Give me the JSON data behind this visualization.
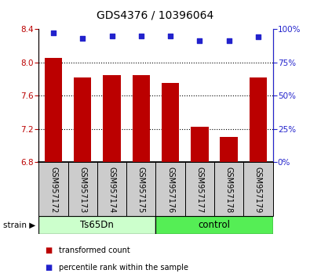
{
  "title": "GDS4376 / 10396064",
  "samples": [
    "GSM957172",
    "GSM957173",
    "GSM957174",
    "GSM957175",
    "GSM957176",
    "GSM957177",
    "GSM957178",
    "GSM957179"
  ],
  "red_values": [
    8.05,
    7.82,
    7.85,
    7.85,
    7.75,
    7.22,
    7.1,
    7.82
  ],
  "blue_values": [
    97,
    93,
    95,
    95,
    95,
    91,
    91,
    94
  ],
  "bar_bottom": 6.8,
  "ylim_left": [
    6.8,
    8.4
  ],
  "ylim_right": [
    0,
    100
  ],
  "yticks_left": [
    6.8,
    7.2,
    7.6,
    8.0,
    8.4
  ],
  "yticks_right": [
    0,
    25,
    50,
    75,
    100
  ],
  "group1_label": "Ts65Dn",
  "group2_label": "control",
  "group1_indices": [
    0,
    1,
    2,
    3
  ],
  "group2_indices": [
    4,
    5,
    6,
    7
  ],
  "strain_label": "strain",
  "legend_red": "transformed count",
  "legend_blue": "percentile rank within the sample",
  "bar_color": "#bb0000",
  "dot_color": "#2222cc",
  "bg_color": "#cccccc",
  "group1_color": "#ccffcc",
  "group2_color": "#55ee55",
  "title_fontsize": 10,
  "tick_fontsize": 7.5,
  "label_fontsize": 7
}
